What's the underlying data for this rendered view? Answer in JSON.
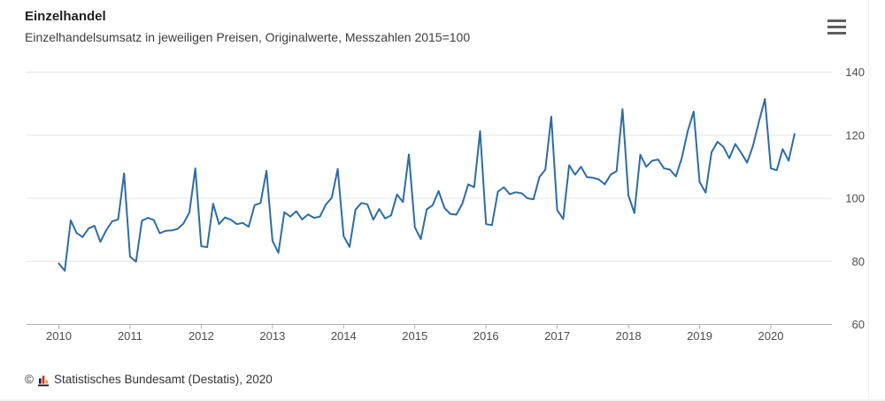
{
  "header": {
    "title": "Einzelhandel",
    "subtitle": "Einzelhandelsumsatz in jeweiligen Preisen, Originalwerte, Messzahlen 2015=100"
  },
  "menu": {
    "tooltip": "Chart context menu"
  },
  "footer": {
    "copyright": "©",
    "source": "Statistisches Bundesamt (Destatis), 2020"
  },
  "chart_data": {
    "type": "line",
    "title": "Einzelhandel",
    "subtitle": "Einzelhandelsumsatz in jeweiligen Preisen, Originalwerte, Messzahlen 2015=100",
    "unit": "Messzahlen 2015=100",
    "line_color": "#2e6ca6",
    "grid": "horizontal-only",
    "legend": "none",
    "ylim": [
      60,
      145
    ],
    "y_ticks": [
      60,
      80,
      100,
      120,
      140
    ],
    "x_tick_labels": [
      "2010",
      "2011",
      "2012",
      "2013",
      "2014",
      "2015",
      "2016",
      "2017",
      "2018",
      "2019",
      "2020"
    ],
    "x_start": "2010-01",
    "x_end": "2020-05",
    "series": [
      {
        "name": "Einzelhandelsumsatz (2015=100)",
        "years": [
          {
            "year": 2010,
            "values": [
              79.3,
              77.0,
              93.0,
              89.0,
              87.7,
              90.4,
              91.3,
              86.2,
              89.9,
              92.7,
              93.3,
              107.9
            ]
          },
          {
            "year": 2011,
            "values": [
              81.5,
              79.9,
              92.9,
              93.8,
              93.1,
              88.9,
              89.7,
              89.8,
              90.3,
              92.0,
              95.5,
              109.5
            ]
          },
          {
            "year": 2012,
            "values": [
              84.8,
              84.5,
              98.3,
              91.8,
              93.9,
              93.2,
              91.8,
              92.2,
              91.0,
              97.8,
              98.5,
              108.7
            ]
          },
          {
            "year": 2013,
            "values": [
              86.5,
              82.7,
              95.6,
              94.2,
              95.9,
              93.3,
              94.9,
              93.8,
              94.2,
              98.0,
              100.2,
              109.3
            ]
          },
          {
            "year": 2014,
            "values": [
              88.0,
              84.6,
              96.4,
              98.5,
              98.1,
              93.2,
              96.6,
              93.6,
              94.6,
              101.2,
              98.8,
              113.9
            ]
          },
          {
            "year": 2015,
            "values": [
              90.8,
              87.1,
              96.5,
              97.8,
              102.3,
              96.9,
              95.0,
              94.8,
              98.3,
              104.4,
              103.5,
              121.3
            ]
          },
          {
            "year": 2016,
            "values": [
              91.8,
              91.5,
              102.1,
              103.5,
              101.3,
              101.9,
              101.6,
              100.0,
              99.7,
              106.7,
              109.1,
              125.9
            ]
          },
          {
            "year": 2017,
            "values": [
              96.3,
              93.4,
              110.5,
              107.5,
              110.0,
              106.7,
              106.5,
              106.0,
              104.4,
              107.5,
              108.6,
              128.3
            ]
          },
          {
            "year": 2018,
            "values": [
              100.9,
              95.3,
              113.8,
              110.0,
              111.9,
              112.3,
              109.5,
              109.1,
              106.9,
              112.8,
              121.3,
              127.5
            ]
          },
          {
            "year": 2019,
            "values": [
              105.2,
              101.8,
              114.6,
              117.9,
              116.3,
              112.7,
              117.2,
              114.4,
              111.3,
              116.7,
              124.3,
              131.5
            ]
          },
          {
            "year": 2020,
            "values": [
              109.5,
              108.9,
              115.6,
              111.9,
              120.4
            ]
          }
        ]
      }
    ],
    "style": {
      "grid_color": "#e6e6e6",
      "axis_color": "#b3b3b3",
      "tick_label_color": "#4d4d4d",
      "logo_colors": {
        "black": "#1a1a1a",
        "red": "#d5232e",
        "yellow": "#f0ab00"
      }
    }
  }
}
